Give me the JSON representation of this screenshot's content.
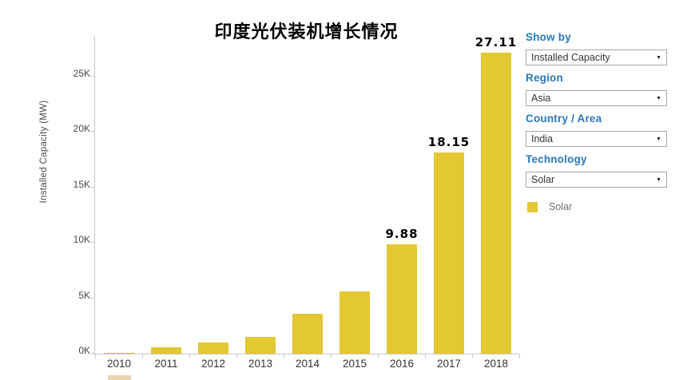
{
  "chart_data": {
    "type": "bar",
    "title": "印度光伏装机增长情况",
    "categories": [
      "2010",
      "2011",
      "2012",
      "2013",
      "2014",
      "2015",
      "2016",
      "2017",
      "2018"
    ],
    "values_k_mw": [
      0.07,
      0.6,
      1.0,
      1.5,
      3.6,
      5.6,
      9.88,
      18.15,
      27.11
    ],
    "bar_labels": [
      "",
      "",
      "",
      "",
      "",
      "",
      "9.88",
      "18.15",
      "27.11"
    ],
    "ylabel": "Installed Capacity (MW)",
    "xlabel": "",
    "y_tick_labels": [
      "0K",
      "5K",
      "10K",
      "15K",
      "20K",
      "25K"
    ],
    "y_tick_values_k": [
      0,
      5,
      10,
      15,
      20,
      25
    ],
    "ylim_k": [
      0,
      28.6
    ],
    "grid": false,
    "legend_position": "right",
    "legend_entries": [
      {
        "label": "Solar",
        "color": "#E3C733"
      }
    ]
  },
  "filters_panel": {
    "controls": [
      {
        "key": "show-by",
        "label": "Show by",
        "value": "Installed Capacity"
      },
      {
        "key": "region",
        "label": "Region",
        "value": "Asia"
      },
      {
        "key": "country-area",
        "label": "Country / Area",
        "value": "India"
      },
      {
        "key": "technology",
        "label": "Technology",
        "value": "Solar"
      }
    ]
  },
  "colors": {
    "bar": "#E3C733",
    "filter_label": "#2778BE",
    "axis_line": "#C9C9C9",
    "tick_text": "#454545",
    "value_label": "#000000"
  }
}
